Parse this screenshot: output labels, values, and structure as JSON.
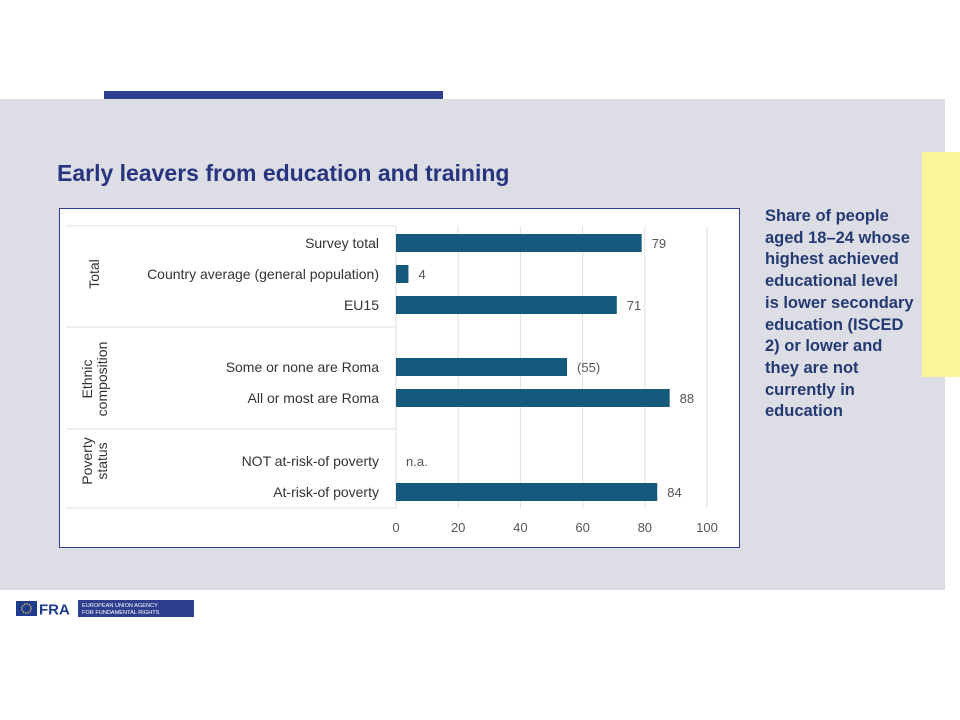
{
  "slide": {
    "title": "Early leavers from education and training",
    "side_note": "Share of people aged 18–24 whose highest achieved educational level is lower secondary education (ISCED 2) or lower and they are not currently in education"
  },
  "footer": {
    "logo_text": "FRA",
    "agency_line_1": "EUROPEAN UNION AGENCY",
    "agency_line_2": "FOR FUNDAMENTAL RIGHTS"
  },
  "colors": {
    "bar": "#155a7c",
    "title": "#27357e",
    "panel": "#dcdde5",
    "accent": "#2e3f8f",
    "tab": "#fdf59a"
  },
  "chart_data": {
    "type": "bar",
    "orientation": "horizontal",
    "categories": [
      "Survey total",
      "Country average (general population)",
      "EU15",
      "Some or none are Roma",
      "All or most are Roma",
      "NOT at-risk-of poverty",
      "At-risk-of poverty"
    ],
    "values": [
      79,
      4,
      71,
      55,
      88,
      null,
      84
    ],
    "data_labels": [
      "79",
      "4",
      "71",
      "(55)",
      "88",
      "n.a.",
      "84"
    ],
    "groups": [
      {
        "label": "Total",
        "categories": [
          "Survey total",
          "Country average (general population)",
          "EU15"
        ]
      },
      {
        "label": "Ethnic composition",
        "label_lines": [
          "Ethnic",
          "composition"
        ],
        "categories": [
          "Some or none are Roma",
          "All or most are Roma"
        ]
      },
      {
        "label": "Poverty status",
        "label_lines": [
          "Poverty",
          "status"
        ],
        "categories": [
          "NOT at-risk-of poverty",
          "At-risk-of poverty"
        ]
      }
    ],
    "xlim": [
      0,
      100
    ],
    "xticks": [
      0,
      20,
      40,
      60,
      80,
      100
    ],
    "grid": true
  }
}
